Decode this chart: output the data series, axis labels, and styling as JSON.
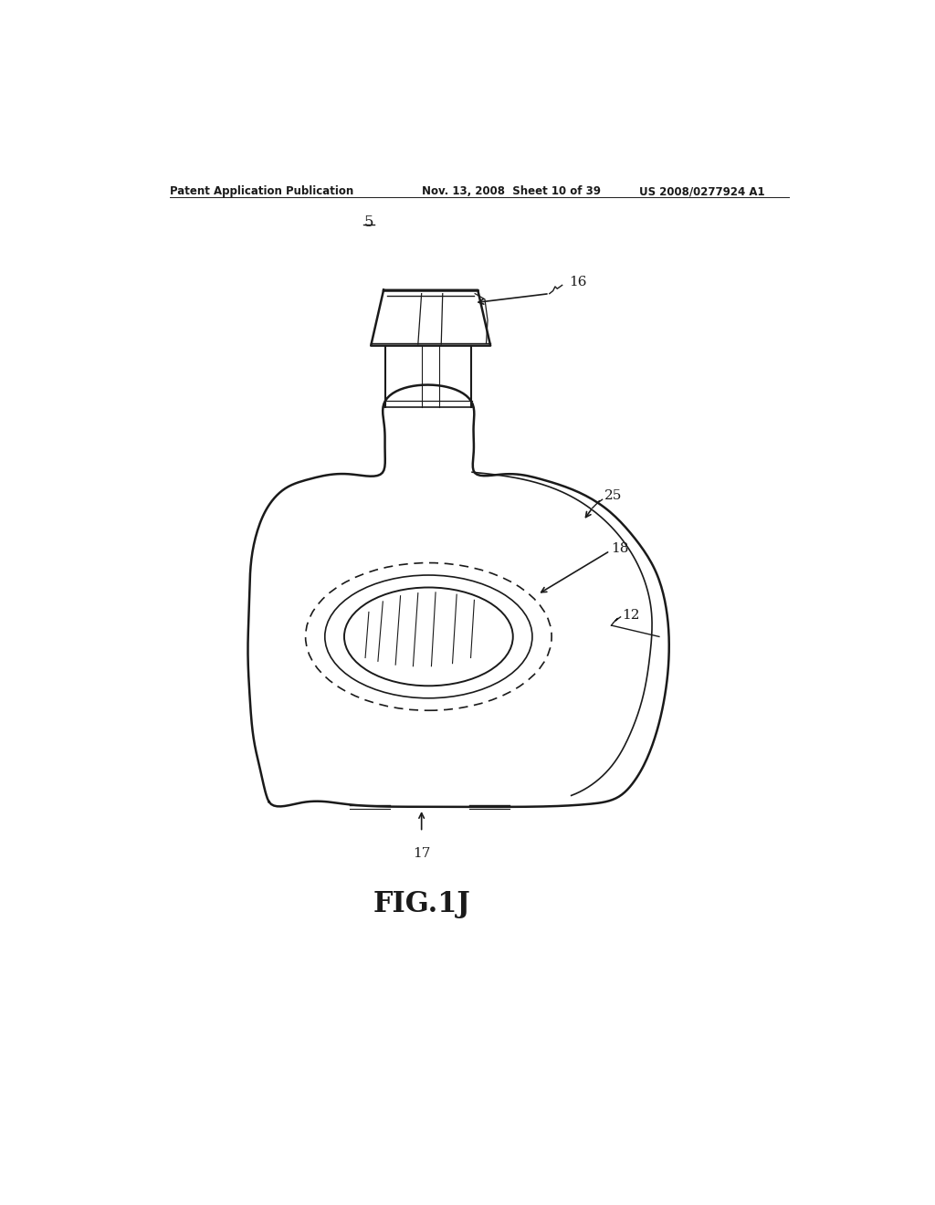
{
  "bg_color": "#ffffff",
  "line_color": "#1a1a1a",
  "header_left": "Patent Application Publication",
  "header_center": "Nov. 13, 2008  Sheet 10 of 39",
  "header_right": "US 2008/0277924 A1",
  "label_5": "5",
  "label_16": "16",
  "label_25": "25",
  "label_18": "18",
  "label_12": "12",
  "label_17": "17",
  "fig_caption": "FIG.1J",
  "fig_width": 1024,
  "fig_height": 1320
}
